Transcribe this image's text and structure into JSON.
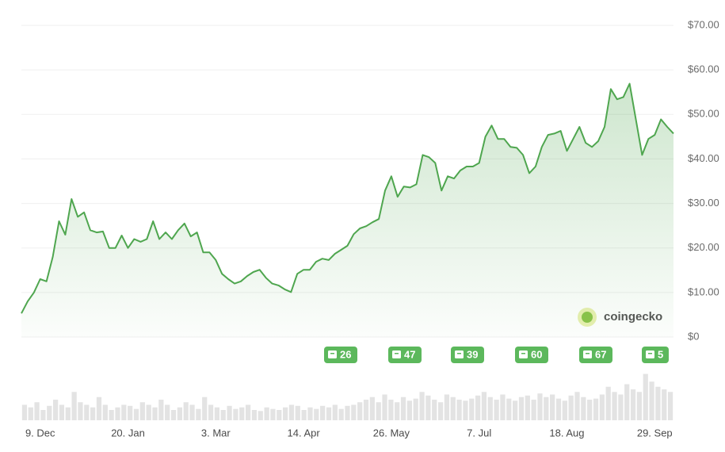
{
  "chart_data": [
    {
      "type": "line",
      "color": "#4fa64f",
      "categories": [
        null,
        null,
        null,
        "9. Dec",
        null,
        null,
        null,
        null,
        null,
        null,
        null,
        null,
        null,
        null,
        null,
        null,
        null,
        "20. Jan",
        null,
        null,
        null,
        null,
        null,
        null,
        null,
        null,
        null,
        null,
        null,
        null,
        null,
        "3. Mar",
        null,
        null,
        null,
        null,
        null,
        null,
        null,
        null,
        null,
        null,
        null,
        null,
        null,
        "14. Apr",
        null,
        null,
        null,
        null,
        null,
        null,
        null,
        null,
        null,
        null,
        null,
        null,
        null,
        "26. May",
        null,
        null,
        null,
        null,
        null,
        null,
        null,
        null,
        null,
        null,
        null,
        null,
        null,
        "7. Jul",
        null,
        null,
        null,
        null,
        null,
        null,
        null,
        null,
        null,
        null,
        null,
        null,
        null,
        "18. Aug",
        null,
        null,
        null,
        null,
        null,
        null,
        null,
        null,
        null,
        null,
        null,
        null,
        null,
        "29. Sep",
        null,
        null,
        null
      ],
      "values": [
        5.3,
        8,
        10,
        13,
        12.5,
        18,
        26,
        23,
        31,
        27,
        28,
        24,
        23.5,
        23.7,
        20,
        20,
        22.8,
        20,
        22,
        21.4,
        22,
        26,
        22,
        23.5,
        22,
        24,
        25.5,
        22.6,
        23.5,
        19,
        19,
        17.3,
        14.2,
        13,
        12,
        12.5,
        13.7,
        14.6,
        15.1,
        13.3,
        12,
        11.6,
        10.7,
        10.1,
        14.2,
        15.1,
        15.1,
        16.9,
        17.6,
        17.3,
        18.7,
        19.6,
        20.5,
        23.1,
        24.4,
        24.9,
        25.8,
        26.5,
        32.9,
        36.1,
        31.5,
        33.8,
        33.6,
        34.3,
        40.9,
        40.4,
        39.1,
        32.9,
        36.1,
        35.6,
        37.4,
        38.3,
        38.3,
        39.1,
        45,
        47.5,
        44.5,
        44.5,
        42.7,
        42.5,
        40.9,
        36.8,
        38.3,
        42.7,
        45.4,
        45.7,
        46.3,
        41.8,
        44.5,
        47.2,
        43.6,
        42.7,
        44,
        47.2,
        55.7,
        53.4,
        53.9,
        56.9,
        48.9,
        40.9,
        44.5,
        45.4,
        48.9,
        47.2,
        45.7
      ],
      "ylim": [
        0,
        70
      ],
      "yticks": [
        {
          "value": 0,
          "label": "$0"
        },
        {
          "value": 10,
          "label": "$10.00"
        },
        {
          "value": 20,
          "label": "$20.00"
        },
        {
          "value": 30,
          "label": "$30.00"
        },
        {
          "value": 40,
          "label": "$40.00"
        },
        {
          "value": 50,
          "label": "$50.00"
        },
        {
          "value": 60,
          "label": "$60.00"
        },
        {
          "value": 70,
          "label": "$70.00"
        }
      ],
      "grid": true,
      "annotations": [
        26,
        47,
        39,
        60,
        67,
        5
      ],
      "watermark": "coingecko"
    },
    {
      "type": "bar",
      "color": "#e3e3e3",
      "ylim": [
        0,
        100
      ],
      "values": [
        30,
        25,
        35,
        20,
        28,
        40,
        30,
        25,
        55,
        35,
        30,
        25,
        45,
        30,
        20,
        25,
        30,
        28,
        22,
        35,
        30,
        25,
        40,
        30,
        20,
        25,
        35,
        30,
        22,
        45,
        30,
        25,
        20,
        28,
        22,
        25,
        30,
        20,
        18,
        25,
        22,
        20,
        25,
        30,
        28,
        20,
        25,
        22,
        28,
        25,
        30,
        22,
        28,
        30,
        35,
        40,
        45,
        35,
        50,
        40,
        35,
        45,
        38,
        42,
        55,
        48,
        40,
        35,
        50,
        45,
        40,
        38,
        42,
        48,
        55,
        45,
        40,
        50,
        42,
        38,
        45,
        48,
        40,
        52,
        45,
        50,
        42,
        38,
        48,
        55,
        45,
        40,
        42,
        50,
        65,
        55,
        50,
        70,
        60,
        55,
        90,
        75,
        65,
        60,
        55
      ]
    }
  ]
}
